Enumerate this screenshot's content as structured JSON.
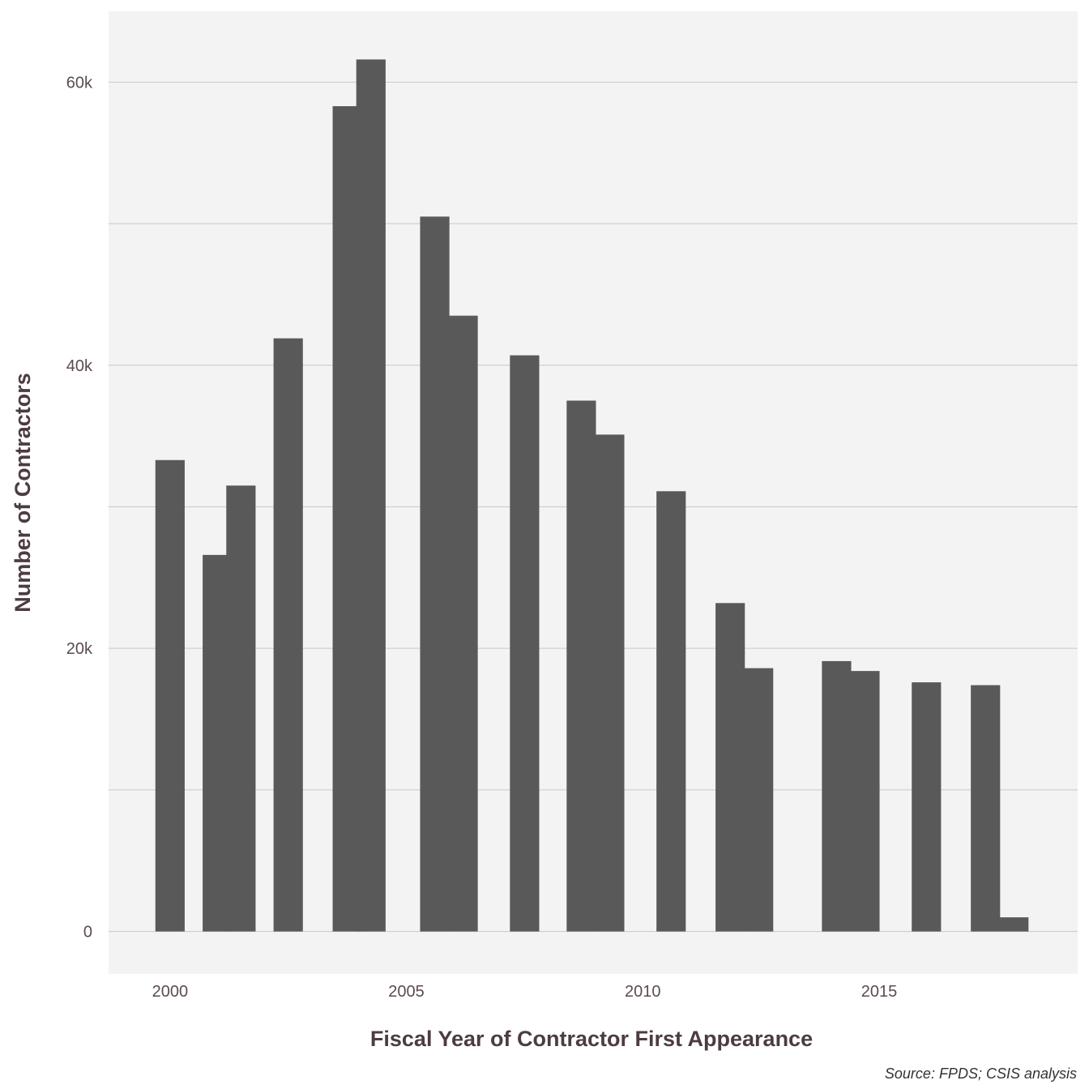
{
  "chart_data": {
    "type": "bar",
    "x": [
      2000,
      2001,
      2001.5,
      2002.5,
      2003.75,
      2004.25,
      2005.6,
      2006.2,
      2007.5,
      2008.7,
      2009.3,
      2010.6,
      2011.85,
      2012.45,
      2014.1,
      2014.7,
      2016.0,
      2017.25,
      2017.85
    ],
    "values": [
      33300,
      26600,
      31500,
      41900,
      58300,
      61600,
      50500,
      43500,
      40700,
      37500,
      35100,
      31100,
      23200,
      18600,
      19100,
      18400,
      17600,
      17400,
      1000
    ],
    "xlabel": "Fiscal Year of Contractor First Appearance",
    "ylabel": "Number of Contractors",
    "xticks": [
      "2000",
      "2005",
      "2010",
      "2015"
    ],
    "xtick_values": [
      2000,
      2005,
      2010,
      2015
    ],
    "yticks": [
      "0",
      "20k",
      "40k",
      "60k"
    ],
    "ytick_values": [
      0,
      20000,
      40000,
      60000
    ],
    "ylim": [
      -3000,
      65000
    ],
    "xlim": [
      1998.7,
      2019.2
    ],
    "grid": true,
    "legend": "none",
    "bar_width_years": 0.62,
    "colors": {
      "bar": "#595959",
      "panel": "#f3f3f3",
      "grid": "#c8c8c8"
    }
  },
  "caption": "Source: FPDS; CSIS analysis"
}
